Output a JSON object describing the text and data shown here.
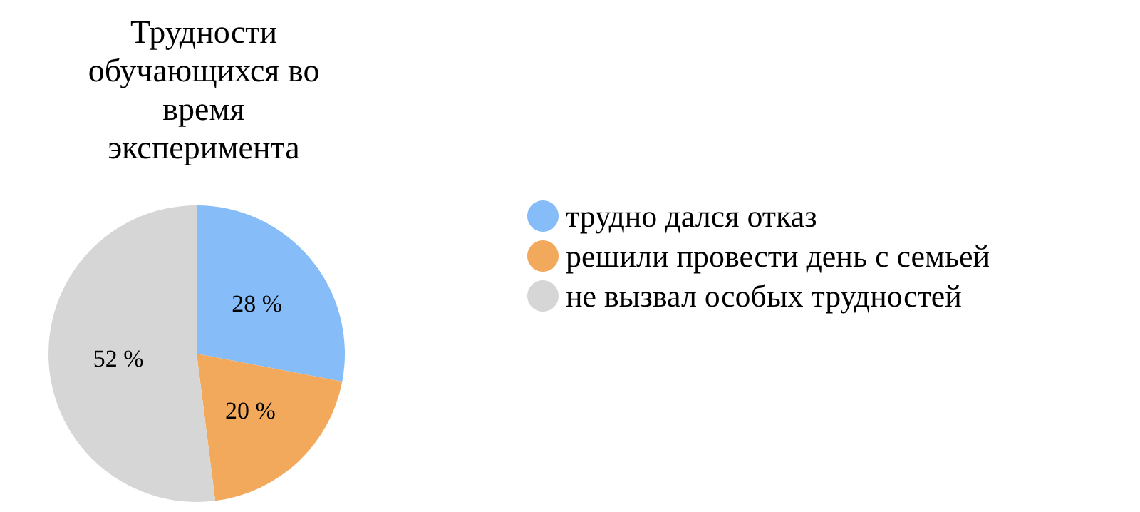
{
  "chart_data": {
    "type": "pie",
    "title": "Трудности\nобучающихся во\nвремя\nэксперимента",
    "categories": [
      "трудно дался отказ",
      "решили провести день с семьей",
      "не вызвал особых трудностей"
    ],
    "values": [
      28,
      20,
      52
    ],
    "colors": [
      "#86bcf7",
      "#f2a95c",
      "#d6d6d6"
    ],
    "value_labels": [
      "28 %",
      "20 %",
      "52 %"
    ],
    "legend": "right"
  }
}
